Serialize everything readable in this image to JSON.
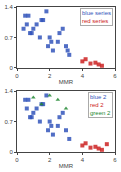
{
  "chart_data": [
    {
      "type": "scatter",
      "xlabel": "MMR",
      "xlim": [
        0,
        6
      ],
      "ylim": [
        0,
        1.4
      ],
      "xticks": [
        0,
        2,
        4,
        6
      ],
      "yticks": [
        0,
        0.7,
        1.4
      ],
      "grid": false,
      "legend": "upper right",
      "series": [
        {
          "name": "blue series",
          "color": "#3355bb",
          "marker": "square",
          "x": [
            0.5,
            1.0,
            1.5,
            2.0,
            0.8,
            1.2,
            2.5,
            3.0,
            1.8,
            0.6,
            2.2,
            1.4,
            2.8,
            3.2,
            0.9,
            1.6,
            2.1,
            0.7,
            1.9,
            2.6,
            3.1,
            0.4
          ],
          "values": [
            1.2,
            0.9,
            1.1,
            0.7,
            0.8,
            1.0,
            0.6,
            0.5,
            1.3,
            1.0,
            0.4,
            0.7,
            0.9,
            0.3,
            0.8,
            1.1,
            0.6,
            1.2,
            0.5,
            0.8,
            0.4,
            0.9
          ]
        },
        {
          "name": "red series",
          "color": "#cc2222",
          "marker": "square",
          "x": [
            4.0,
            4.5,
            5.0,
            4.2,
            4.8,
            5.2
          ],
          "values": [
            0.15,
            0.1,
            0.08,
            0.2,
            0.12,
            0.05
          ]
        }
      ]
    },
    {
      "type": "scatter",
      "xlabel": "MMR",
      "xlim": [
        0,
        6
      ],
      "ylim": [
        0,
        1.4
      ],
      "xticks": [
        0,
        2,
        4,
        6
      ],
      "yticks": [
        0,
        0.7,
        1.4
      ],
      "grid": false,
      "legend": "upper right",
      "series": [
        {
          "name": "blue 2",
          "color": "#3355bb",
          "marker": "square",
          "x": [
            0.5,
            1.0,
            1.5,
            2.0,
            0.8,
            1.2,
            2.5,
            3.0,
            1.8,
            0.6,
            2.2,
            1.4,
            2.8,
            3.2,
            0.9,
            1.6,
            2.1,
            0.7,
            1.9,
            2.6
          ],
          "values": [
            1.2,
            0.9,
            1.1,
            0.7,
            0.8,
            1.0,
            0.6,
            0.5,
            1.3,
            1.0,
            0.4,
            0.7,
            0.9,
            0.3,
            0.8,
            1.1,
            0.6,
            1.2,
            0.5,
            0.8
          ]
        },
        {
          "name": "red 2",
          "color": "#cc2222",
          "marker": "square",
          "x": [
            4.0,
            4.5,
            5.0,
            4.2,
            4.8,
            5.2,
            5.5
          ],
          "values": [
            0.15,
            0.1,
            0.08,
            0.2,
            0.12,
            0.05,
            0.18
          ]
        },
        {
          "name": "green 2",
          "color": "#228833",
          "marker": "triangle-up",
          "x": [
            1.5,
            2.0,
            2.5,
            3.0,
            1.0
          ],
          "values": [
            1.1,
            1.3,
            1.2,
            1.0,
            1.25
          ]
        }
      ]
    }
  ]
}
